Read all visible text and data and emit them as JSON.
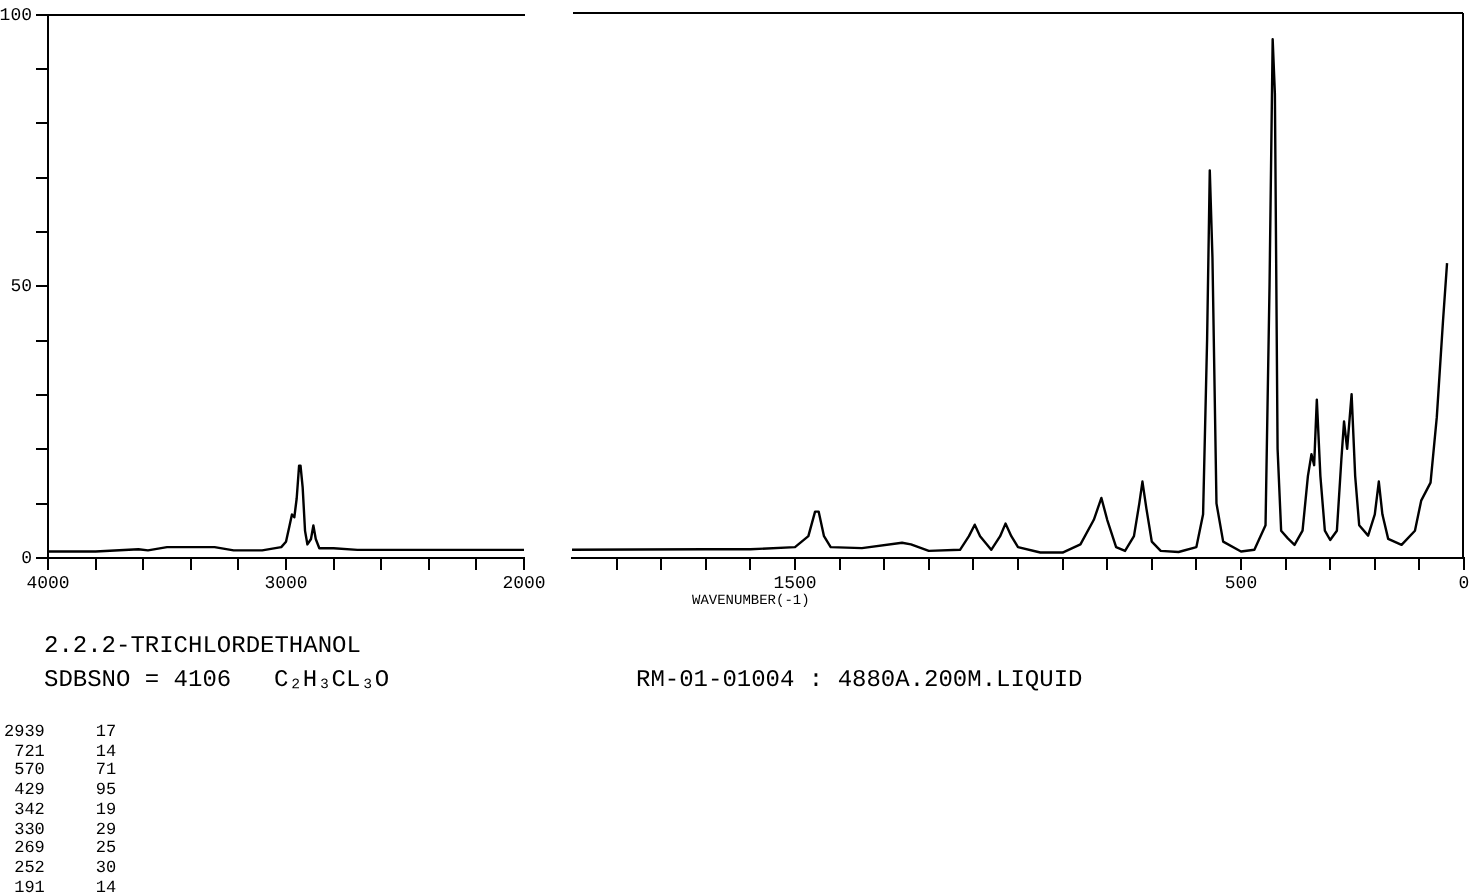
{
  "chart_data": [
    {
      "type": "line",
      "title": "2.2.2-TRICHLORDETHANOL",
      "x": [
        4000,
        3900,
        3800,
        3620,
        3580,
        3500,
        3400,
        3300,
        3220,
        3100,
        3020,
        3000,
        2985,
        2975,
        2965,
        2955,
        2945,
        2939,
        2930,
        2920,
        2910,
        2895,
        2885,
        2875,
        2860,
        2800,
        2700,
        2500,
        2000
      ],
      "series": [
        {
          "color": "#000000",
          "values": [
            1.2,
            1.2,
            1.2,
            1.6,
            1.4,
            2,
            2,
            2,
            1.4,
            1.4,
            2,
            3,
            6,
            8,
            7.5,
            11,
            17,
            17,
            13,
            5,
            2.5,
            3.5,
            6,
            3.5,
            1.8,
            1.8,
            1.5,
            1.5,
            1.5
          ]
        }
      ],
      "xlim": [
        4000,
        2000
      ],
      "xticks": [
        4000,
        {
          "value": 3800,
          "label": null
        },
        {
          "value": 3600,
          "label": null
        },
        {
          "value": 3400,
          "label": null
        },
        {
          "value": 3200,
          "label": null
        },
        3000,
        {
          "value": 2800,
          "label": null
        },
        {
          "value": 2600,
          "label": null
        },
        {
          "value": 2400,
          "label": null
        },
        {
          "value": 2200,
          "label": null
        },
        2000
      ],
      "ylim": [
        0,
        100
      ],
      "yticks": [
        0,
        {
          "value": 10,
          "label": null
        },
        {
          "value": 20,
          "label": null
        },
        {
          "value": 30,
          "label": null
        },
        {
          "value": 40,
          "label": null
        },
        50,
        {
          "value": 60,
          "label": null
        },
        {
          "value": 70,
          "label": null
        },
        {
          "value": 80,
          "label": null
        },
        {
          "value": 90,
          "label": null
        },
        100
      ],
      "grid": false,
      "legend": false,
      "marker": "none",
      "line_style": "solid",
      "annotations": [
        "SDBSNO = 4106",
        "C₂H₃CL₃O",
        "RM-01-01004 : 4880A.200M.LIQUID",
        "2939     17",
        " 721     14",
        " 570     71",
        " 429     95",
        " 342     19",
        " 330     29",
        " 269     25",
        " 252     30",
        " 191     14"
      ]
    },
    {
      "type": "line",
      "xlabel": "WAVENUMBER(-1)",
      "x": [
        2000,
        1700,
        1600,
        1500,
        1470,
        1455,
        1447,
        1435,
        1420,
        1350,
        1260,
        1240,
        1200,
        1130,
        1110,
        1097,
        1085,
        1060,
        1040,
        1028,
        1015,
        1000,
        950,
        900,
        860,
        830,
        813,
        800,
        780,
        760,
        740,
        728,
        721,
        712,
        700,
        680,
        640,
        600,
        585,
        576,
        570,
        564,
        555,
        540,
        500,
        470,
        445,
        436,
        429,
        424,
        418,
        410,
        395,
        380,
        362,
        350,
        342,
        336,
        330,
        322,
        312,
        300,
        285,
        275,
        269,
        262,
        252,
        244,
        235,
        215,
        200,
        191,
        183,
        170,
        140,
        110,
        96,
        75,
        61,
        47,
        38
      ],
      "series": [
        {
          "color": "#000000",
          "values": [
            1.5,
            1.6,
            1.6,
            2,
            4,
            8.5,
            8.5,
            4,
            2,
            1.8,
            2.8,
            2.5,
            1.3,
            1.5,
            4,
            6.1,
            4,
            1.5,
            4,
            6.3,
            4,
            2,
            1,
            1,
            2.5,
            7,
            11,
            7,
            2,
            1.3,
            4,
            10,
            14,
            9,
            3,
            1.3,
            1.1,
            2,
            8,
            40,
            71,
            55,
            10,
            3,
            1.2,
            1.5,
            6,
            50,
            95,
            85,
            20,
            5,
            3.6,
            2.4,
            5,
            15,
            19,
            17,
            29,
            15,
            5,
            3.3,
            5,
            18,
            25,
            20,
            30,
            15,
            6,
            4.1,
            8,
            14,
            8,
            3.5,
            2.4,
            5,
            10.5,
            13.8,
            25.8,
            43.5,
            54
          ]
        }
      ],
      "xlim": [
        2000,
        0
      ],
      "xticks": [
        {
          "value": 1900,
          "label": null
        },
        {
          "value": 1800,
          "label": null
        },
        {
          "value": 1700,
          "label": null
        },
        {
          "value": 1600,
          "label": null
        },
        1500,
        {
          "value": 1400,
          "label": null
        },
        {
          "value": 1300,
          "label": null
        },
        {
          "value": 1200,
          "label": null
        },
        {
          "value": 1100,
          "label": null
        },
        {
          "value": 1000,
          "label": null
        },
        {
          "value": 900,
          "label": null
        },
        {
          "value": 800,
          "label": null
        },
        {
          "value": 700,
          "label": null
        },
        {
          "value": 600,
          "label": null
        },
        500,
        {
          "value": 400,
          "label": null
        },
        {
          "value": 300,
          "label": null
        },
        {
          "value": 200,
          "label": null
        },
        {
          "value": 100,
          "label": null
        },
        0
      ],
      "ylim": [
        0,
        100
      ],
      "tick_labels": "x",
      "grid": false,
      "legend": false,
      "marker": "none",
      "line_style": "solid"
    }
  ]
}
